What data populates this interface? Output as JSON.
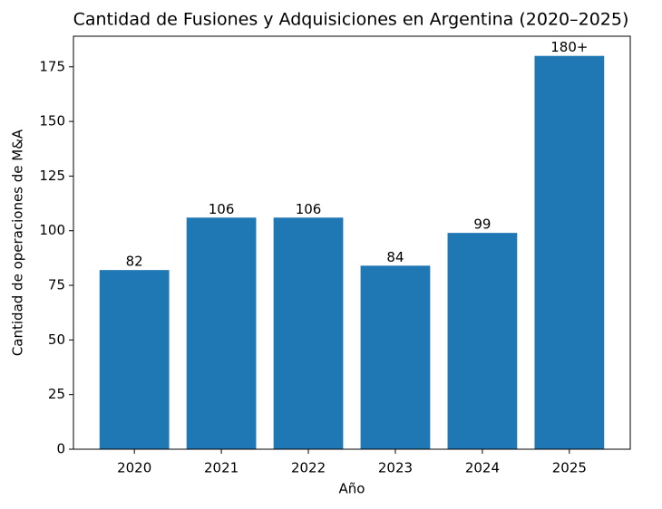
{
  "chart_data": {
    "type": "bar",
    "title": "Cantidad de Fusiones y Adquisiciones en Argentina (2020–2025)",
    "x_label": "Año",
    "y_label": "Cantidad de operaciones de M&A",
    "categories": [
      "2020",
      "2021",
      "2022",
      "2023",
      "2024",
      "2025"
    ],
    "values": [
      82,
      106,
      106,
      84,
      99,
      180
    ],
    "value_labels": [
      "82",
      "106",
      "106",
      "84",
      "99",
      "180+"
    ],
    "color": "#1f77b4",
    "ylim": [
      0,
      189
    ],
    "yticks": [
      0,
      25,
      50,
      75,
      100,
      125,
      150,
      175
    ],
    "grid": false
  }
}
